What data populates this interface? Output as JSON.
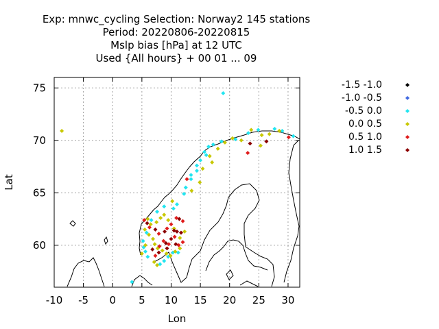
{
  "titles": [
    "Exp: mnwc_cycling   Selection: Norway2    145 stations",
    "Period: 20220806-20220815",
    "Mslp bias [hPa] at  12 UTC",
    "Used {All hours} + 00 01 ... 09"
  ],
  "chart_data": {
    "type": "scatter",
    "xlabel": "Lon",
    "ylabel": "Lat",
    "xlim": [
      -10,
      32
    ],
    "ylim": [
      56,
      76
    ],
    "xticks": [
      -10,
      -5,
      0,
      5,
      10,
      15,
      20,
      25,
      30
    ],
    "yticks": [
      60,
      65,
      70,
      75
    ],
    "grid": true,
    "legend_position": "right",
    "series": [
      {
        "name": "-1.5 -1.0",
        "color": "#000000",
        "points": []
      },
      {
        "name": "-1.0 -0.5",
        "color": "#4169e1",
        "points": []
      },
      {
        "name": "-0.5 0.0",
        "color": "#22e5f0",
        "points": [
          [
            18.9,
            74.5
          ],
          [
            3.3,
            56.5
          ],
          [
            8.1,
            58.2
          ],
          [
            8.8,
            58.5
          ],
          [
            9.5,
            58.9
          ],
          [
            10.3,
            59.3
          ],
          [
            11.2,
            59.3
          ],
          [
            6.0,
            58.9
          ],
          [
            5.6,
            59.4
          ],
          [
            5.3,
            59.8
          ],
          [
            5.2,
            60.4
          ],
          [
            5.8,
            61.2
          ],
          [
            6.6,
            62.4
          ],
          [
            7.6,
            63.2
          ],
          [
            8.8,
            63.7
          ],
          [
            10.4,
            63.5
          ],
          [
            11.0,
            63.9
          ],
          [
            12.2,
            64.9
          ],
          [
            12.5,
            65.5
          ],
          [
            13.4,
            66.3
          ],
          [
            13.4,
            66.7
          ],
          [
            14.4,
            67.1
          ],
          [
            14.4,
            67.6
          ],
          [
            15.0,
            68.1
          ],
          [
            16.0,
            68.6
          ],
          [
            15.7,
            68.9
          ],
          [
            16.4,
            69.4
          ],
          [
            17.2,
            69.6
          ],
          [
            18.6,
            69.9
          ],
          [
            21.0,
            70.1
          ],
          [
            23.2,
            70.7
          ],
          [
            24.9,
            71.0
          ],
          [
            27.7,
            71.1
          ],
          [
            29.0,
            70.9
          ],
          [
            30.9,
            70.4
          ]
        ]
      },
      {
        "name": "0.0 0.5",
        "color": "#c8c800",
        "points": [
          [
            -8.7,
            70.9
          ],
          [
            6.0,
            62.5
          ],
          [
            6.5,
            62.0
          ],
          [
            7.5,
            62.2
          ],
          [
            8.2,
            62.6
          ],
          [
            8.8,
            62.9
          ],
          [
            9.5,
            62.4
          ],
          [
            5.5,
            61.5
          ],
          [
            6.2,
            61.0
          ],
          [
            6.9,
            60.6
          ],
          [
            7.2,
            60.1
          ],
          [
            7.7,
            59.7
          ],
          [
            8.5,
            59.5
          ],
          [
            9.2,
            59.2
          ],
          [
            9.9,
            59.0
          ],
          [
            10.7,
            59.4
          ],
          [
            11.5,
            59.7
          ],
          [
            11.5,
            60.7
          ],
          [
            12.3,
            61.3
          ],
          [
            10.5,
            61.6
          ],
          [
            7.1,
            58.4
          ],
          [
            7.6,
            58.1
          ],
          [
            5.0,
            59.2
          ],
          [
            5.6,
            60.0
          ],
          [
            10.2,
            64.2
          ],
          [
            13.5,
            65.2
          ],
          [
            14.9,
            66.0
          ],
          [
            15.4,
            67.3
          ],
          [
            17.0,
            67.9
          ],
          [
            16.6,
            68.5
          ],
          [
            18.0,
            69.2
          ],
          [
            19.2,
            69.8
          ],
          [
            20.5,
            70.2
          ],
          [
            22.0,
            70.0
          ],
          [
            23.7,
            71.0
          ],
          [
            25.5,
            70.5
          ],
          [
            25.3,
            69.5
          ],
          [
            26.8,
            70.6
          ],
          [
            28.5,
            70.9
          ]
        ]
      },
      {
        "name": "0.5 1.0",
        "color": "#e01c1c",
        "points": [
          [
            5.4,
            62.4
          ],
          [
            6.3,
            61.7
          ],
          [
            7.9,
            61.1
          ],
          [
            9.3,
            61.6
          ],
          [
            10.0,
            62.0
          ],
          [
            10.9,
            62.6
          ],
          [
            12.0,
            62.3
          ],
          [
            8.0,
            59.9
          ],
          [
            8.7,
            60.4
          ],
          [
            9.6,
            60.1
          ],
          [
            10.6,
            60.8
          ],
          [
            11.3,
            60.0
          ],
          [
            12.0,
            60.3
          ],
          [
            7.3,
            59.0
          ],
          [
            12.7,
            66.3
          ],
          [
            23.1,
            68.8
          ],
          [
            30.1,
            70.3
          ]
        ]
      },
      {
        "name": "1.0 1.5",
        "color": "#8b0000",
        "points": [
          [
            5.9,
            62.1
          ],
          [
            7.3,
            61.5
          ],
          [
            8.9,
            61.3
          ],
          [
            10.5,
            61.4
          ],
          [
            11.4,
            62.5
          ],
          [
            11.0,
            61.3
          ],
          [
            9.1,
            60.2
          ],
          [
            10.8,
            60.1
          ],
          [
            6.8,
            59.6
          ],
          [
            7.9,
            59.3
          ],
          [
            9.3,
            59.7
          ],
          [
            10.0,
            60.6
          ],
          [
            11.7,
            61.2
          ],
          [
            23.5,
            69.7
          ],
          [
            26.3,
            69.9
          ]
        ]
      }
    ]
  }
}
